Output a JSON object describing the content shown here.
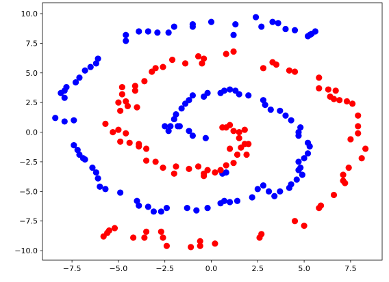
{
  "chart_data": {
    "type": "scatter",
    "xlim": [
      -9.09,
      9.2
    ],
    "ylim": [
      -10.8,
      10.92
    ],
    "xticks": [
      {
        "value": -7.5,
        "label": "−7.5"
      },
      {
        "value": -5,
        "label": "−5.0"
      },
      {
        "value": -2.5,
        "label": "−2.5"
      },
      {
        "value": 0,
        "label": "0.0"
      },
      {
        "value": 2.5,
        "label": "2.5"
      },
      {
        "value": 5,
        "label": "5.0"
      },
      {
        "value": 7.5,
        "label": "7.5"
      }
    ],
    "yticks": [
      {
        "value": -10,
        "label": "−10.0"
      },
      {
        "value": -7.5,
        "label": "−7.5"
      },
      {
        "value": -5,
        "label": "−5.0"
      },
      {
        "value": -2.5,
        "label": "−2.5"
      },
      {
        "value": 0,
        "label": "0.0"
      },
      {
        "value": 2.5,
        "label": "2.5"
      },
      {
        "value": 5,
        "label": "5.0"
      },
      {
        "value": 7.5,
        "label": "7.5"
      },
      {
        "value": 10,
        "label": "10.0"
      }
    ],
    "grid": false,
    "series": [
      {
        "color": "#0000ff",
        "x": [
          5.3,
          4.5,
          4.0,
          3.6,
          3.3,
          2.4,
          1.3,
          0,
          -1,
          -1,
          -2,
          -2.3,
          -2.9,
          -3.4,
          -3.9,
          -4.6,
          -4.6,
          -6.1,
          -6.2,
          -6.5,
          -6.8,
          -7.1,
          -7.3,
          -7.8,
          -7.9,
          -8.1,
          -7.9,
          -8.4,
          -7.9,
          -7.4,
          -7.4,
          -7.2,
          -7.1,
          -6.8,
          -6.9,
          -6.4,
          -6.2,
          -6.1,
          -6.0,
          -5.7,
          -4.9,
          -3.9,
          -4.0,
          -3.4,
          -3.1,
          -2.7,
          -2.4,
          -1.3,
          -0.8,
          -0.2,
          0.5,
          0.7,
          1.0,
          1.4,
          2.2,
          2.5,
          2.8,
          3.1,
          3.4,
          3.7,
          4.2,
          4.3,
          4.6,
          4.9,
          4.7,
          4.8,
          4.7,
          5.0,
          5.2,
          5.3,
          5.2,
          4.7,
          4.7,
          4.8,
          4.3,
          4.0,
          3.7,
          3.2,
          2.9,
          2.8,
          2.0,
          1.5,
          1.3,
          1.0,
          0.7,
          0.5,
          -0.2,
          -0.4,
          -1.0,
          -1.2,
          -1.4,
          -1.6,
          -1.9,
          -2.0,
          -1.8,
          -2.2,
          -2.5,
          -2.3,
          -1.7,
          -1.2,
          -1.0,
          -0.3,
          0.8,
          0.6,
          5.4,
          5.6,
          5.2,
          2.7,
          1.2
        ],
        "values": [
          8.2,
          8.6,
          8.7,
          9.2,
          9.3,
          9.7,
          9.1,
          9.3,
          9.1,
          8.9,
          8.9,
          8.4,
          8.4,
          8.5,
          8.5,
          8.2,
          7.7,
          6.2,
          5.8,
          5.5,
          5.2,
          4.6,
          4.2,
          3.8,
          3.5,
          3.3,
          2.9,
          1.2,
          0.9,
          1.0,
          -1.1,
          -1.5,
          -1.9,
          -2.3,
          -2.2,
          -3.0,
          -3.4,
          -3.9,
          -4.6,
          -4.8,
          -5.1,
          -6.2,
          -5.8,
          -6.3,
          -6.7,
          -6.7,
          -6.4,
          -6.4,
          -6.6,
          -6.4,
          -6.0,
          -5.8,
          -5.9,
          -5.8,
          -5.5,
          -4.8,
          -4.5,
          -5.0,
          -5.4,
          -5.0,
          -4.7,
          -4.4,
          -4.0,
          -3.6,
          -3.2,
          -3.0,
          -2.5,
          -2.2,
          -1.8,
          -1.2,
          -0.9,
          -0.3,
          0.0,
          0.4,
          1.0,
          1.4,
          1.8,
          1.9,
          2.3,
          2.7,
          3.1,
          3.2,
          3.5,
          3.6,
          3.5,
          3.3,
          3.3,
          3.0,
          3.1,
          2.7,
          2.4,
          2.0,
          1.5,
          1.1,
          0.5,
          0.5,
          0.5,
          0.1,
          0.5,
          0.1,
          -0.3,
          -0.5,
          -3.4,
          -3.5,
          8.3,
          8.5,
          8.1,
          8.9,
          8.2
        ]
      },
      {
        "color": "#ff0000",
        "x": [
          -5.6,
          -5.2,
          -4.2,
          -3.6,
          -2.6,
          -2.4,
          -1.1,
          -0.6,
          -0.6,
          0.2,
          2.6,
          2.7,
          4.5,
          5.0,
          5.8,
          5.9,
          6.6,
          7.2,
          7.1,
          7.1,
          7.4,
          7.5,
          8.1,
          8.3,
          7.9,
          7.9,
          7.9,
          7.6,
          7.3,
          6.9,
          6.6,
          6.4,
          6.7,
          6.3,
          5.8,
          5.8,
          4.5,
          4.2,
          3.5,
          3.3,
          2.8,
          1.2,
          0.8,
          -0.4,
          -0.7,
          -0.5,
          -1.4,
          -2.1,
          -2.6,
          -3.0,
          -3.2,
          -3.6,
          -4.1,
          -4.1,
          -4.8,
          -4.8,
          -5.0,
          -4.6,
          -4.5,
          -4.0,
          -4.9,
          -5.0,
          -5.3,
          -5.7,
          -4.6,
          -4.9,
          -4.4,
          -3.9,
          -3.9,
          -3.5,
          -3.5,
          -3.0,
          -2.6,
          -2.0,
          -1.9,
          -1.2,
          -0.7,
          -0.2,
          -0.4,
          -0.4,
          0.2,
          0.5,
          0.8,
          1.2,
          1.4,
          1.0,
          1.6,
          1.8,
          1.5,
          1.2,
          1.5,
          1.8,
          1.9,
          2.0,
          0.8,
          1.0,
          0.6,
          -5.5,
          -5.8,
          -2.7,
          -3.5
        ],
        "values": [
          -8.5,
          -8.1,
          -8.9,
          -8.9,
          -8.9,
          -9.6,
          -9.7,
          -9.6,
          -9.2,
          -9.4,
          -8.9,
          -8.6,
          -7.5,
          -7.9,
          -6.4,
          -6.2,
          -5.3,
          -4.3,
          -4.1,
          -3.6,
          -3.0,
          -0.6,
          -2.2,
          -1.4,
          -0.1,
          0.5,
          1.4,
          2.4,
          2.6,
          2.7,
          2.8,
          3.0,
          3.5,
          3.6,
          3.7,
          4.6,
          5.1,
          5.2,
          5.7,
          5.9,
          5.4,
          6.8,
          6.6,
          6.2,
          6.4,
          5.8,
          5.8,
          6.1,
          5.5,
          5.4,
          5.1,
          4.3,
          3.9,
          3.5,
          3.8,
          3.2,
          2.5,
          2.6,
          2.2,
          2.1,
          1.8,
          0.2,
          0.0,
          0.7,
          -0.1,
          -0.8,
          -0.9,
          -1.0,
          -1.2,
          -1.4,
          -2.4,
          -2.5,
          -3.0,
          -3.5,
          -2.9,
          -3.1,
          -2.9,
          -3.2,
          -3.5,
          -3.7,
          -3.4,
          -3.2,
          -2.8,
          -2.6,
          -1.9,
          -1.4,
          -1.3,
          -1.0,
          -0.5,
          0.1,
          0.0,
          0.2,
          -1.9,
          -1.0,
          0.4,
          0.6,
          0.4,
          -8.3,
          -8.8,
          -8.4,
          -8.4
        ]
      }
    ]
  }
}
